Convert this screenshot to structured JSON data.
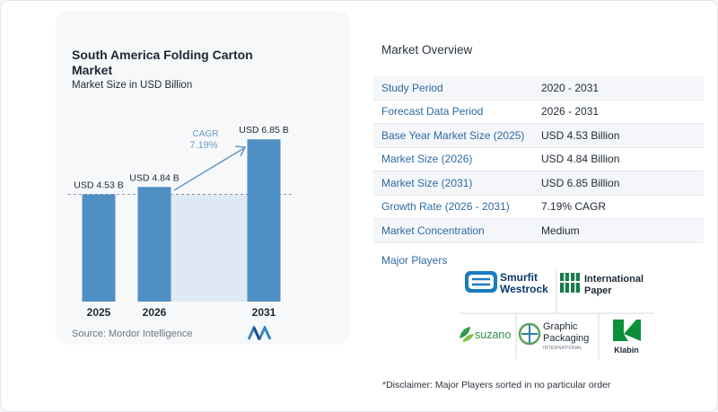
{
  "chart_data": {
    "type": "bar",
    "title": "South America Folding Carton Market",
    "subtitle": "Market Size in USD Billion",
    "categories": [
      "2025",
      "2026",
      "2031"
    ],
    "values": [
      4.53,
      4.84,
      6.85
    ],
    "value_labels": [
      "USD 4.53 B",
      "USD 4.84 B",
      "USD 6.85 B"
    ],
    "ylim": [
      0,
      7.2
    ],
    "grid": false,
    "bar_color": "#4f8fc4",
    "cagr_label": "CAGR",
    "cagr_value": "7.19%"
  },
  "source": "Source: Mordor Intelligence",
  "overview": {
    "title": "Market Overview",
    "rows": [
      {
        "label": "Study Period",
        "value": "2020 - 2031"
      },
      {
        "label": "Forecast Data Period",
        "value": "2026 - 2031"
      },
      {
        "label": "Base Year Market Size (2025)",
        "value": "USD 4.53 Billion"
      },
      {
        "label": "Market Size (2026)",
        "value": "USD 4.84 Billion"
      },
      {
        "label": "Market Size (2031)",
        "value": "USD 6.85 Billion"
      },
      {
        "label": "Growth Rate (2026 - 2031)",
        "value": "7.19% CAGR"
      },
      {
        "label": "Market Concentration",
        "value": "Medium"
      }
    ]
  },
  "players": {
    "title": "Major Players",
    "smurfit_line1": "Smurfit",
    "smurfit_line2": "Westrock",
    "ip_line1": "International",
    "ip_line2": "Paper",
    "suzano": "suzano",
    "gp_line1": "Graphic",
    "gp_line2": "Packaging",
    "gp_line3": "INTERNATIONAL",
    "klabin": "Klabin"
  },
  "disclaimer": "*Disclaimer: Major Players sorted in no particular order",
  "colors": {
    "accent": "#2d6aa3",
    "bar": "#4f8fc4",
    "shade": "#dfe9f3",
    "cagr": "#6a9cc7"
  }
}
